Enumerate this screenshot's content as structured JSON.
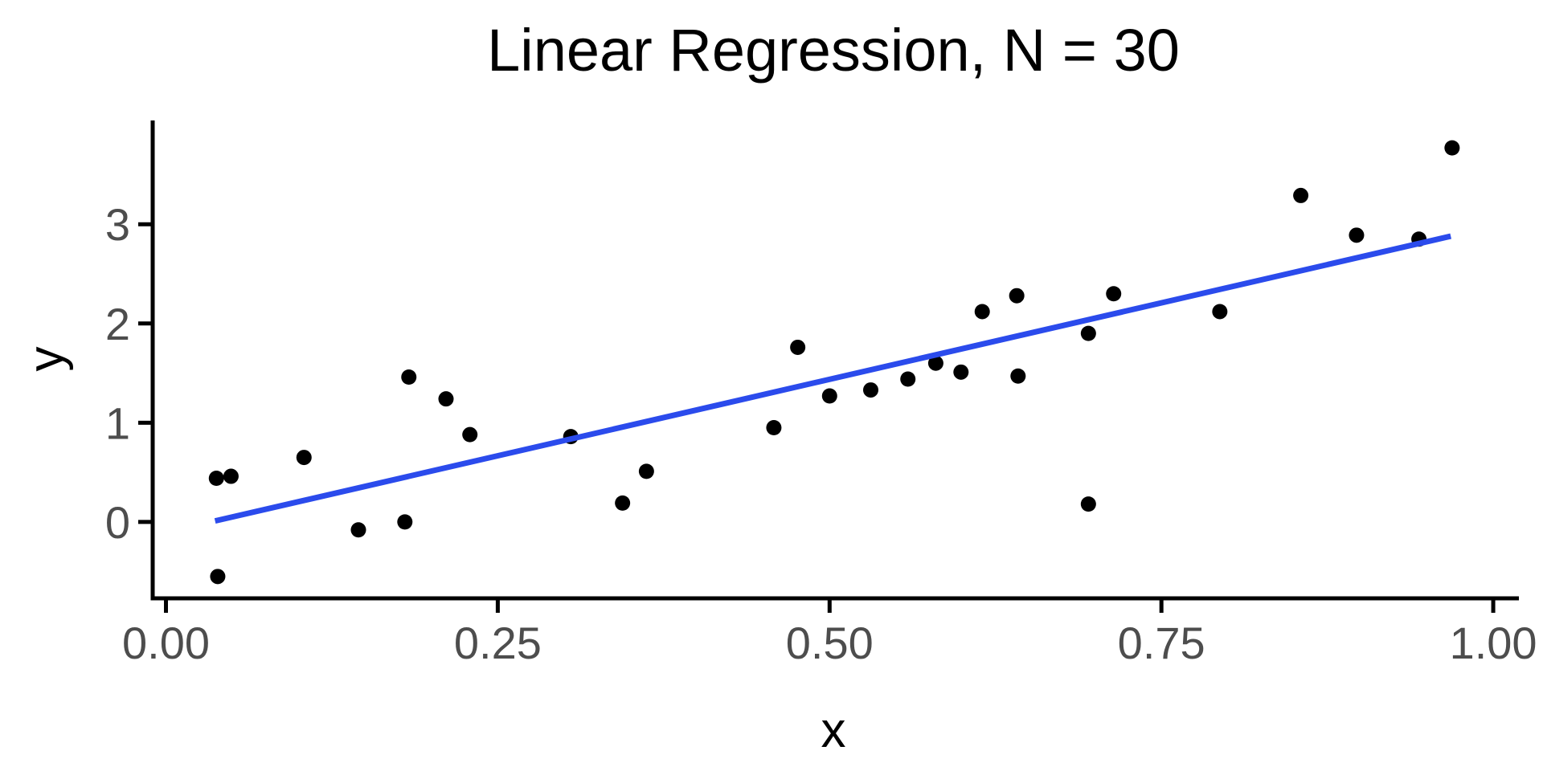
{
  "chart_data": {
    "type": "scatter",
    "title": "Linear Regression, N = 30",
    "xlabel": "x",
    "ylabel": "y",
    "n_points": 30,
    "grid": "off",
    "legend": "none",
    "xlim": [
      -0.01,
      1.0157
    ],
    "ylim": [
      -0.77,
      4.03
    ],
    "x_ticks": {
      "values": [
        0.0,
        0.25,
        0.5,
        0.75,
        1.0
      ],
      "labels": [
        "0.00",
        "0.25",
        "0.50",
        "0.75",
        "1.00"
      ]
    },
    "y_ticks": {
      "values": [
        0,
        1,
        2,
        3
      ],
      "labels": [
        "0",
        "1",
        "2",
        "3"
      ]
    },
    "point_color": "#000000",
    "line_color": "#2b4bec",
    "axis_color": "#000000",
    "tick_label_color": "#4d4d4d",
    "points": [
      [
        0.038,
        0.44
      ],
      [
        0.039,
        -0.55
      ],
      [
        0.049,
        0.46
      ],
      [
        0.104,
        0.65
      ],
      [
        0.145,
        -0.08
      ],
      [
        0.18,
        0.0
      ],
      [
        0.183,
        1.46
      ],
      [
        0.211,
        1.24
      ],
      [
        0.229,
        0.88
      ],
      [
        0.305,
        0.86
      ],
      [
        0.344,
        0.19
      ],
      [
        0.362,
        0.51
      ],
      [
        0.458,
        0.95
      ],
      [
        0.476,
        1.76
      ],
      [
        0.5,
        1.27
      ],
      [
        0.531,
        1.33
      ],
      [
        0.559,
        1.44
      ],
      [
        0.58,
        1.6
      ],
      [
        0.599,
        1.51
      ],
      [
        0.615,
        2.12
      ],
      [
        0.641,
        2.28
      ],
      [
        0.642,
        1.47
      ],
      [
        0.695,
        1.9
      ],
      [
        0.695,
        0.18
      ],
      [
        0.714,
        2.3
      ],
      [
        0.794,
        2.12
      ],
      [
        0.855,
        3.29
      ],
      [
        0.897,
        2.89
      ],
      [
        0.944,
        2.85
      ],
      [
        0.969,
        3.77
      ]
    ],
    "regression_line": {
      "x1": 0.037,
      "y1": 0.01,
      "x2": 0.968,
      "y2": 2.88
    }
  }
}
